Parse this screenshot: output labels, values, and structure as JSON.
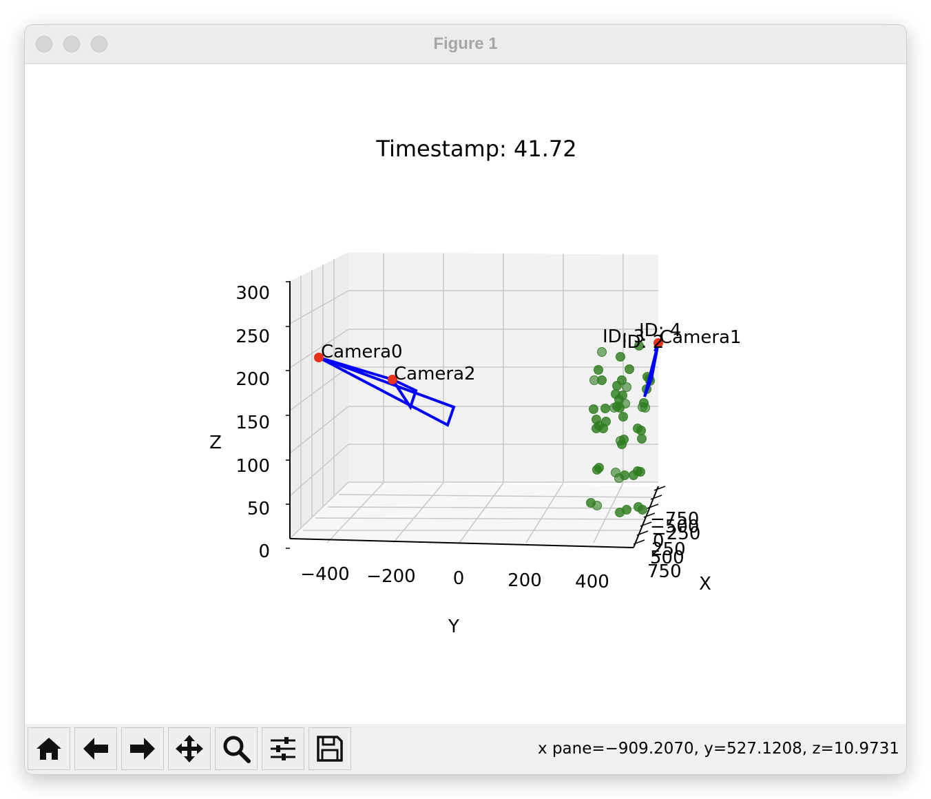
{
  "window": {
    "title": "Figure 1"
  },
  "chart_data": {
    "type": "scatter",
    "dimensions": "3d",
    "title": "Timestamp: 41.72",
    "xlabel": "X",
    "ylabel": "Y",
    "zlabel": "Z",
    "x_ticks": [
      "−750",
      "−500",
      "−250",
      "0",
      "250",
      "500",
      "750"
    ],
    "y_ticks": [
      "−400",
      "−200",
      "0",
      "200",
      "400"
    ],
    "z_ticks": [
      "0",
      "50",
      "100",
      "150",
      "200",
      "250",
      "300"
    ],
    "grid": true,
    "cameras": [
      {
        "label": "Camera0",
        "color": "#e8301c"
      },
      {
        "label": "Camera2",
        "color": "#e8301c"
      },
      {
        "label": "Camera1",
        "color": "#e8301c"
      }
    ],
    "frustum_color": "#0000ff",
    "point_color": "#2e7d1f",
    "point_labels": [
      "ID: 4",
      "ID: 3",
      "ID: 2"
    ],
    "point_count": 52
  },
  "toolbar": {
    "buttons": [
      {
        "name": "home",
        "icon": "home-icon"
      },
      {
        "name": "back",
        "icon": "arrow-left-icon"
      },
      {
        "name": "forward",
        "icon": "arrow-right-icon"
      },
      {
        "name": "pan",
        "icon": "move-icon"
      },
      {
        "name": "zoom",
        "icon": "magnifier-icon"
      },
      {
        "name": "configure",
        "icon": "sliders-icon"
      },
      {
        "name": "save",
        "icon": "floppy-icon"
      }
    ],
    "coords_text": "x pane=−909.2070, y=527.1208, z=10.9731"
  }
}
